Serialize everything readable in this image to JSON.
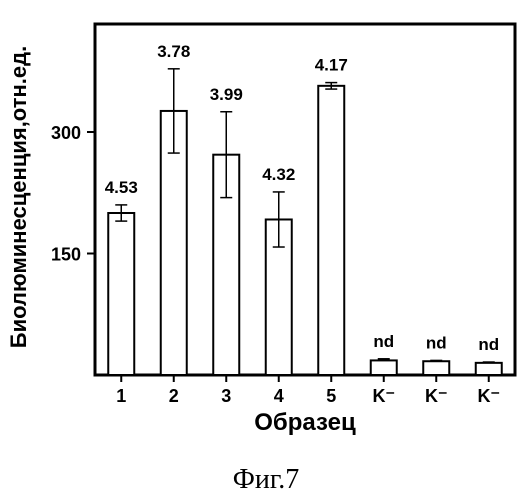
{
  "chart_data": {
    "type": "bar",
    "categories": [
      "1",
      "2",
      "3",
      "4",
      "5",
      "K⁻",
      "K⁻",
      "K⁻"
    ],
    "values": [
      200,
      326,
      272,
      192,
      357,
      18,
      17,
      15
    ],
    "errors": [
      10,
      52,
      53,
      34,
      4,
      2,
      1,
      1
    ],
    "bar_labels": [
      "4.53",
      "3.78",
      "3.99",
      "4.32",
      "4.17",
      "nd",
      "nd",
      "nd"
    ],
    "xlabel": "Образец",
    "ylabel": "Биолюминесценция,отн.ед.",
    "yticks": [
      150,
      300
    ],
    "ylim": [
      0,
      430
    ],
    "grid": false,
    "bar_fill": "#ffffff",
    "bar_stroke": "#000000"
  },
  "caption": "Фиг.7"
}
